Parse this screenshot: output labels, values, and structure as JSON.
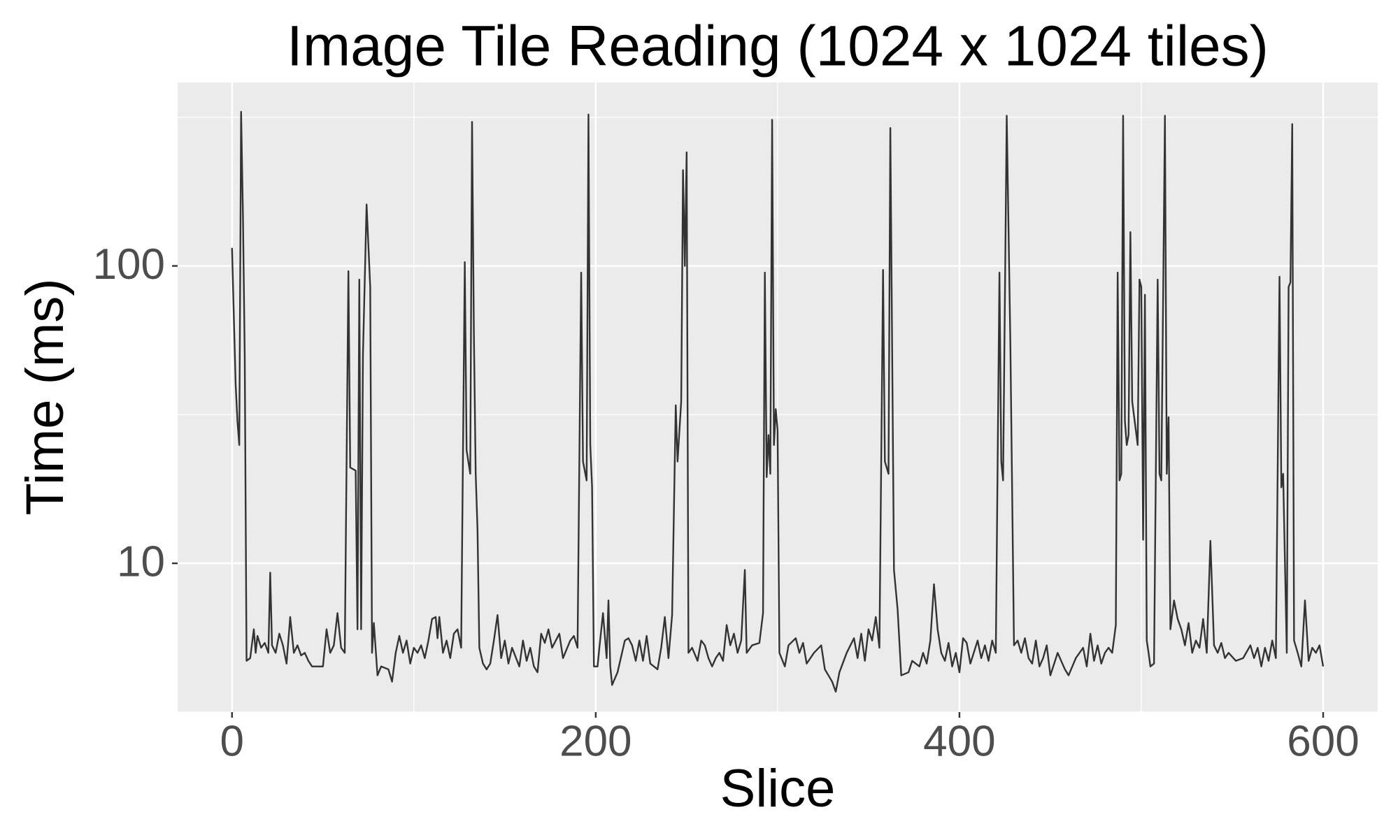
{
  "chart_data": {
    "type": "line",
    "title": "Image Tile Reading (1024 x 1024 tiles)",
    "x_label": "Slice",
    "y_label": "Time (ms)",
    "xlim": [
      -29.9,
      630
    ],
    "xticks": [
      0,
      200,
      400,
      600
    ],
    "ylim": [
      3.16,
      414
    ],
    "yticks": [
      10,
      100
    ],
    "y_scale": "log",
    "grid": true,
    "minor_grid": true,
    "color": "#333333",
    "x": [
      0,
      2,
      3,
      4,
      5,
      6,
      7,
      8,
      10,
      12,
      13,
      14,
      16,
      18,
      20,
      21,
      22,
      24,
      26,
      28,
      30,
      32,
      34,
      36,
      38,
      40,
      42,
      44,
      50,
      52,
      54,
      56,
      58,
      60,
      62,
      64,
      65,
      68,
      69,
      70,
      71,
      72,
      74,
      76,
      77,
      78,
      80,
      82,
      86,
      88,
      90,
      92,
      94,
      96,
      98,
      100,
      102,
      104,
      106,
      108,
      110,
      112,
      113,
      114,
      116,
      118,
      120,
      122,
      124,
      126,
      128,
      129,
      131,
      132,
      133,
      134,
      135,
      136,
      138,
      140,
      142,
      144,
      146,
      148,
      150,
      152,
      154,
      158,
      160,
      162,
      164,
      166,
      168,
      170,
      172,
      174,
      176,
      180,
      182,
      186,
      188,
      190,
      192,
      193,
      195,
      196,
      197,
      198,
      199,
      201,
      202,
      204,
      206,
      207,
      208,
      209,
      212,
      216,
      218,
      220,
      222,
      224,
      226,
      228,
      230,
      234,
      236,
      238,
      240,
      242,
      244,
      245,
      247,
      248,
      249,
      250,
      251,
      253,
      256,
      258,
      260,
      262,
      264,
      266,
      268,
      270,
      272,
      274,
      276,
      278,
      280,
      282,
      283,
      286,
      290,
      292,
      293,
      294,
      295,
      296,
      297,
      298,
      299,
      300,
      301,
      304,
      306,
      310,
      312,
      314,
      316,
      320,
      324,
      326,
      330,
      332,
      334,
      338,
      342,
      344,
      346,
      348,
      350,
      352,
      354,
      356,
      358,
      359,
      361,
      362,
      364,
      366,
      368,
      372,
      374,
      378,
      380,
      382,
      384,
      386,
      388,
      390,
      392,
      394,
      396,
      398,
      400,
      402,
      404,
      406,
      410,
      412,
      414,
      416,
      418,
      420,
      422,
      423,
      424,
      426,
      428,
      430,
      432,
      434,
      436,
      438,
      440,
      442,
      444,
      446,
      448,
      450,
      454,
      458,
      460,
      464,
      468,
      470,
      472,
      474,
      476,
      478,
      480,
      482,
      484,
      486,
      487,
      488,
      489,
      490,
      491,
      492,
      493,
      494,
      495,
      497,
      498,
      499,
      500,
      501,
      502,
      503,
      504,
      505,
      507,
      509,
      510,
      511,
      513,
      514,
      515,
      516,
      518,
      520,
      522,
      524,
      526,
      528,
      530,
      532,
      534,
      536,
      538,
      540,
      542,
      544,
      546,
      548,
      552,
      556,
      560,
      562,
      564,
      566,
      568,
      570,
      572,
      574,
      576,
      577,
      578,
      580,
      581,
      582,
      583,
      584,
      586,
      588,
      590,
      592,
      594,
      596,
      598,
      600
    ],
    "values": [
      115,
      40,
      30,
      25,
      330,
      150,
      50,
      4.7,
      4.8,
      6,
      5,
      5.7,
      5.2,
      5.4,
      5,
      9.3,
      5.3,
      5,
      5.8,
      5.3,
      4.6,
      6.6,
      5,
      5.3,
      4.9,
      5,
      4.7,
      4.5,
      4.5,
      6,
      5,
      5.3,
      6.8,
      5.2,
      5,
      96,
      21,
      20.5,
      6,
      90,
      6,
      50,
      161,
      85,
      5,
      6.3,
      4.2,
      4.5,
      4.4,
      4,
      5,
      5.7,
      5,
      5.5,
      4.6,
      5.2,
      5,
      5.3,
      4.8,
      5.5,
      6.5,
      6.6,
      5.6,
      6.6,
      5,
      5.5,
      4.8,
      5.8,
      6,
      5.2,
      103,
      24,
      20,
      305,
      60,
      20,
      13,
      5.2,
      4.6,
      4.4,
      4.6,
      5.5,
      6.7,
      4.8,
      5.5,
      4.6,
      5.2,
      4.5,
      5.5,
      4.7,
      5.2,
      4.5,
      4.3,
      5.8,
      5.4,
      6,
      5.2,
      5.8,
      4.8,
      5.5,
      5.7,
      5.2,
      95,
      22,
      19,
      323,
      25,
      18,
      4.5,
      4.5,
      5.2,
      6.8,
      4.8,
      7.5,
      4.5,
      3.9,
      4.3,
      5.5,
      5.6,
      5.3,
      4.7,
      5.5,
      4.7,
      5.7,
      4.6,
      4.4,
      5.2,
      6.6,
      4.8,
      6.7,
      34,
      22,
      35,
      210,
      100,
      241,
      5,
      5.2,
      4.7,
      5.5,
      5.3,
      4.8,
      4.5,
      4.8,
      5,
      4.7,
      6.2,
      5.3,
      5.8,
      5,
      5.5,
      9.5,
      5,
      5.3,
      5.4,
      6.8,
      95,
      19.5,
      27,
      20,
      310,
      25,
      33,
      28,
      5,
      4.5,
      5.3,
      5.6,
      5,
      5.4,
      4.6,
      5,
      5.3,
      4.4,
      4,
      3.7,
      4.3,
      5,
      5.6,
      4.8,
      5.8,
      4.7,
      6,
      5.5,
      6.6,
      5.2,
      97,
      22,
      20,
      291,
      9.5,
      7,
      4.2,
      4.3,
      4.7,
      4.5,
      5,
      4.6,
      5.5,
      8.5,
      6,
      5,
      4.7,
      5.4,
      4.5,
      5,
      4.3,
      5.6,
      5.4,
      4.6,
      5.5,
      4.8,
      5.3,
      4.7,
      5.5,
      5,
      95,
      22,
      19,
      320,
      55,
      5.3,
      5.5,
      5,
      5.6,
      4.8,
      4.6,
      5.5,
      4.5,
      4.8,
      5.3,
      4.2,
      5,
      4.4,
      4.2,
      4.8,
      5.2,
      4.5,
      5.8,
      4.7,
      5.3,
      4.6,
      5,
      5.2,
      5,
      6.2,
      95,
      19,
      20,
      320,
      30,
      25,
      27,
      130,
      35,
      28,
      25,
      90,
      85,
      12,
      80,
      5.5,
      5,
      4.5,
      4.6,
      90,
      20,
      19,
      320,
      20,
      31,
      6,
      7.5,
      6.5,
      6,
      5.3,
      6.3,
      5,
      5.5,
      5.2,
      6.5,
      5,
      11.9,
      5.3,
      5,
      5.4,
      4.8,
      5,
      4.7,
      4.8,
      5.3,
      4.8,
      5.2,
      4.5,
      5.2,
      4.7,
      5.5,
      4.8,
      92,
      18,
      20,
      5,
      85,
      88,
      300,
      5.5,
      5,
      4.5,
      7.5,
      4.7,
      5.2,
      5,
      5.3,
      4.5
    ]
  }
}
